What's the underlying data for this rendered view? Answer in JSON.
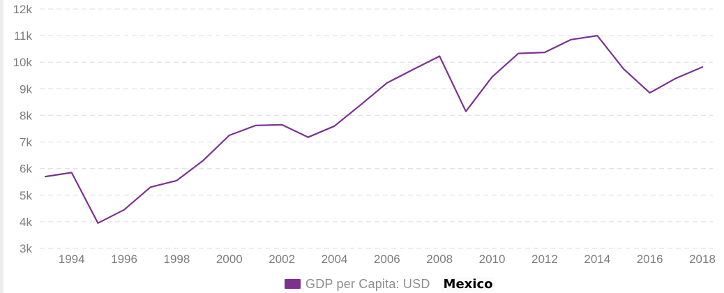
{
  "legend": {
    "label": "GDP per Capita: USD",
    "country": "Mexico"
  },
  "colors": {
    "line": "#7c3191",
    "swatch": "#7c3191",
    "grid": "#e3e3e3",
    "axis_text": "#7d7d7d",
    "legend_text": "#8d8d8d",
    "country_text": "#000000",
    "background": "#ffffff",
    "left_strip": "#ededed"
  },
  "chart_data": {
    "type": "line",
    "title": "",
    "xlabel": "",
    "ylabel": "",
    "series": [
      {
        "name": "GDP per Capita: USD",
        "country": "Mexico",
        "x": [
          1993,
          1994,
          1995,
          1996,
          1997,
          1998,
          1999,
          2000,
          2001,
          2002,
          2003,
          2004,
          2005,
          2006,
          2007,
          2008,
          2009,
          2010,
          2011,
          2012,
          2013,
          2014,
          2015,
          2016,
          2017,
          2018
        ],
        "values": [
          5700,
          5850,
          3950,
          4450,
          5300,
          5550,
          6300,
          7250,
          7620,
          7650,
          7180,
          7600,
          8400,
          9220,
          9730,
          10230,
          8150,
          9450,
          10330,
          10370,
          10850,
          11000,
          9750,
          8850,
          9400,
          9820
        ]
      }
    ],
    "ylim": [
      3000,
      12000
    ],
    "y_tick_step": 1000,
    "y_tick_labels": [
      "3k",
      "4k",
      "5k",
      "6k",
      "7k",
      "8k",
      "9k",
      "10k",
      "11k",
      "12k"
    ],
    "x_tick_years": [
      1994,
      1996,
      1998,
      2000,
      2002,
      2004,
      2006,
      2008,
      2010,
      2012,
      2014,
      2016,
      2018
    ],
    "grid": "horizontal-dashed",
    "legend_position": "bottom-center"
  }
}
